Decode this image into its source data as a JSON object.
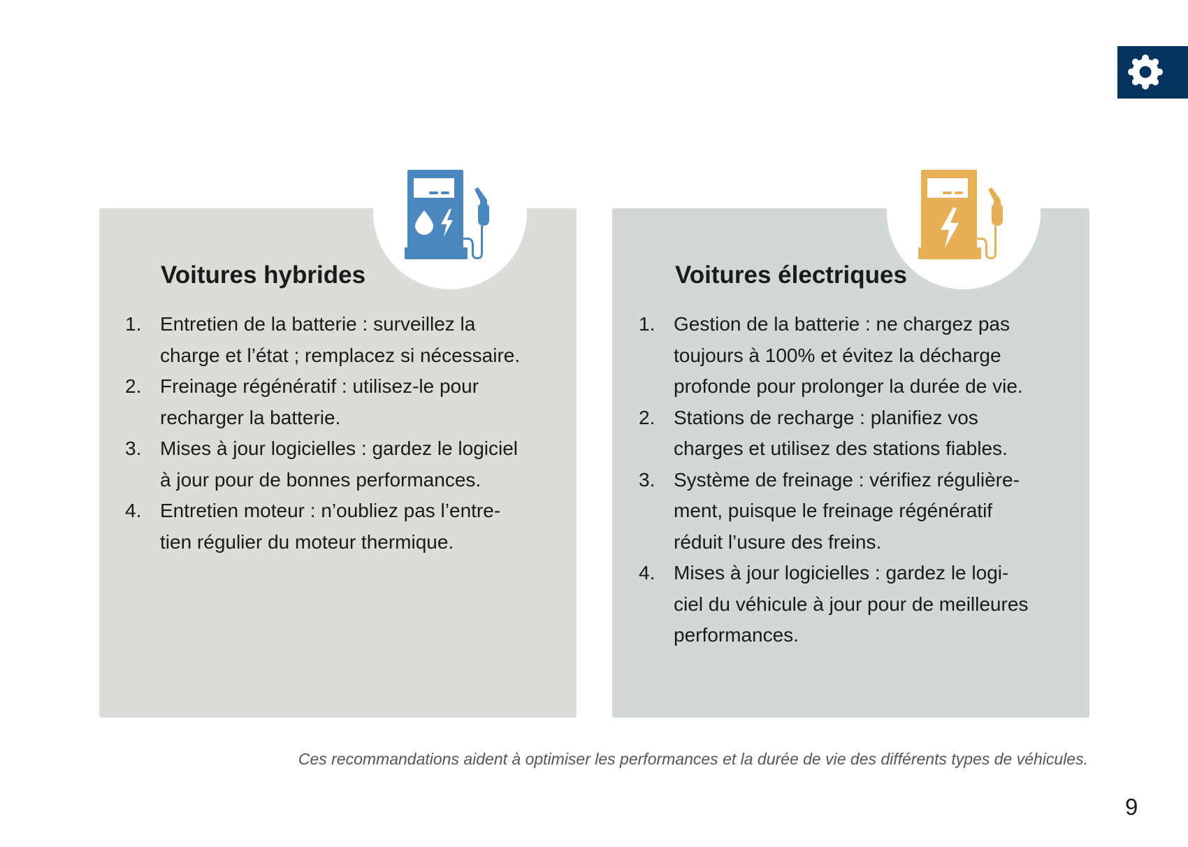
{
  "header": {
    "badge_icon": "gear-icon",
    "badge_color": "#05335f"
  },
  "cards": [
    {
      "title": "Voitures hybrides",
      "icon": "fuel-pump-hybrid-icon",
      "icon_color": "#4a87bf",
      "background": "#dcdcd8",
      "items": [
        {
          "num": "1.",
          "lines": [
            "Entretien de la batterie : surveillez la",
            "charge et l’état ; remplacez si nécessaire."
          ]
        },
        {
          "num": "2.",
          "lines": [
            "Freinage régénératif : utilisez-le pour",
            "recharger la batterie."
          ]
        },
        {
          "num": "3.",
          "lines": [
            "Mises à jour logicielles : gardez le logiciel",
            "à jour pour de bonnes performances."
          ]
        },
        {
          "num": "4.",
          "lines": [
            "Entretien moteur : n’oubliez pas l’entre-",
            "tien régulier du moteur thermique."
          ]
        }
      ]
    },
    {
      "title": "Voitures électriques",
      "icon": "ev-charging-pump-icon",
      "icon_color": "#e8b056",
      "background": "#d1d8d6",
      "items": [
        {
          "num": "1.",
          "lines": [
            "Gestion de la batterie : ne chargez pas",
            "toujours à 100% et évitez la décharge",
            "profonde pour prolonger la durée de vie."
          ]
        },
        {
          "num": "2.",
          "lines": [
            "Stations de recharge : planifiez vos",
            "charges et utilisez des stations fiables."
          ]
        },
        {
          "num": "3.",
          "lines": [
            "Système de freinage : vérifiez régulière-",
            "ment, puisque le freinage régénératif",
            "réduit l’usure des freins."
          ]
        },
        {
          "num": "4.",
          "lines": [
            "Mises à jour logicielles : gardez le logi-",
            "ciel du véhicule à jour pour de meilleures",
            "performances."
          ]
        }
      ]
    }
  ],
  "footer": "Ces recommandations aident à optimiser les performances et la durée de vie des différents types de véhicules.",
  "page_number": "9"
}
